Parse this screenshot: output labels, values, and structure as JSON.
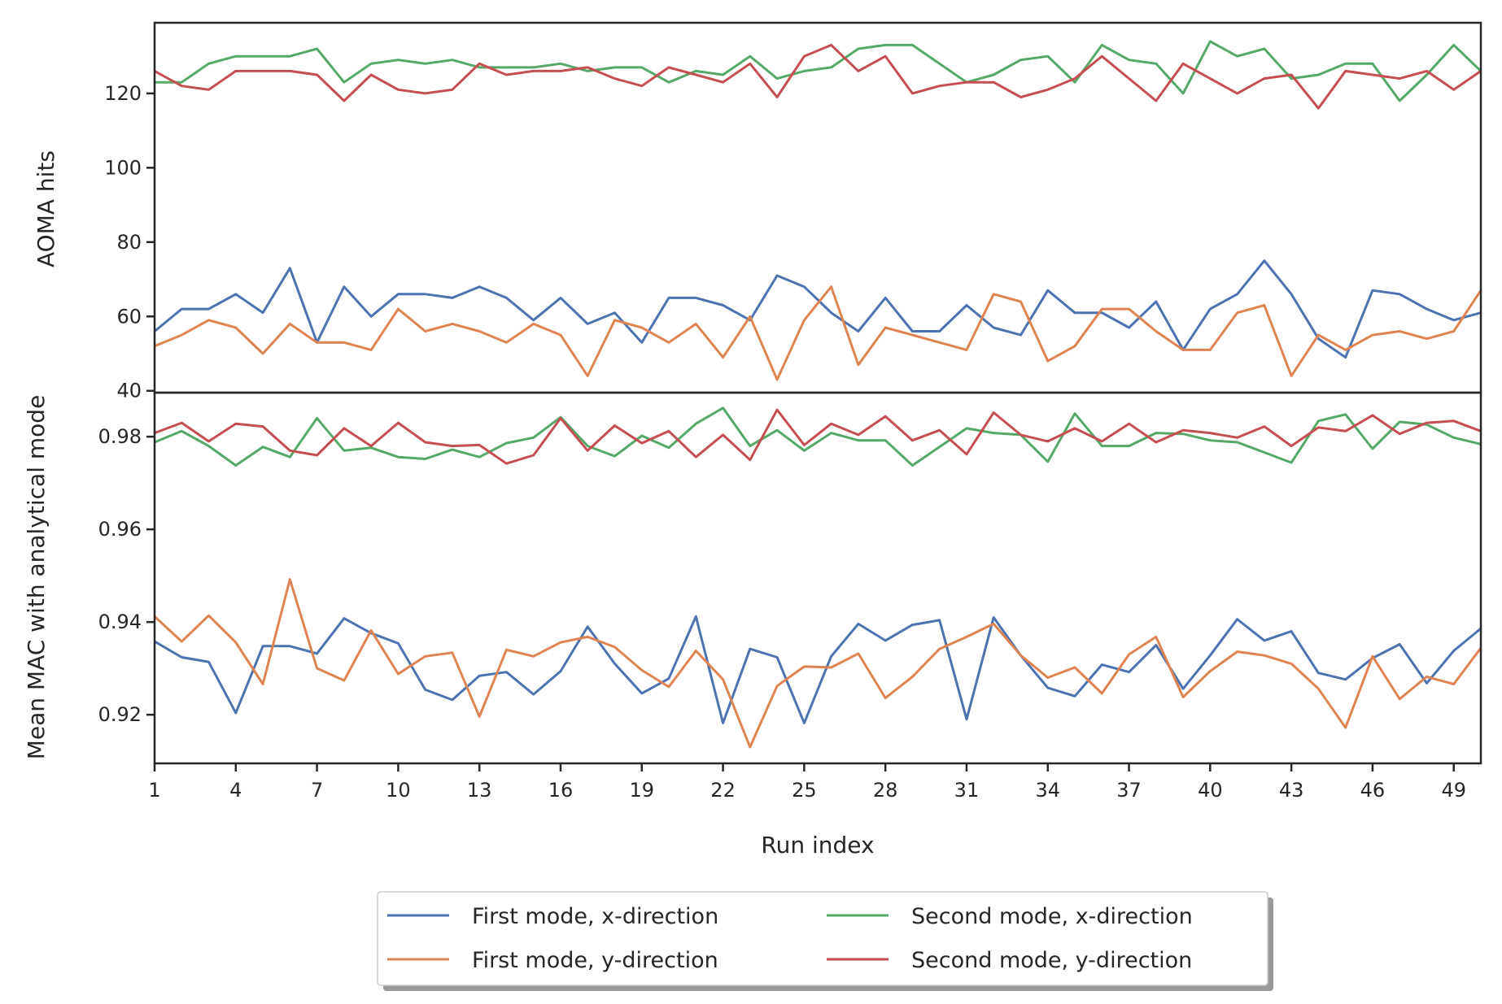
{
  "chart_data": [
    {
      "type": "line",
      "ylabel": "AOMA hits",
      "ylim": [
        39.5,
        139
      ],
      "yticks": [
        40,
        60,
        80,
        100,
        120
      ],
      "x": [
        1,
        2,
        3,
        4,
        5,
        6,
        7,
        8,
        9,
        10,
        11,
        12,
        13,
        14,
        15,
        16,
        17,
        18,
        19,
        20,
        21,
        22,
        23,
        24,
        25,
        26,
        27,
        28,
        29,
        30,
        31,
        32,
        33,
        34,
        35,
        36,
        37,
        38,
        39,
        40,
        41,
        42,
        43,
        44,
        45,
        46,
        47,
        48,
        49,
        50
      ],
      "series": [
        {
          "name": "First mode, x-direction",
          "color": "#4c72b0",
          "values": [
            56,
            62,
            62,
            66,
            61,
            73,
            53,
            68,
            60,
            66,
            66,
            65,
            68,
            65,
            59,
            65,
            58,
            61,
            53,
            65,
            65,
            63,
            59,
            71,
            68,
            61,
            56,
            65,
            56,
            56,
            63,
            57,
            55,
            67,
            61,
            61,
            57,
            64,
            51,
            62,
            66,
            75,
            66,
            54,
            49,
            67,
            66,
            62,
            59,
            61
          ]
        },
        {
          "name": "First mode, y-direction",
          "color": "#dd8452",
          "values": [
            52,
            55,
            59,
            57,
            50,
            58,
            53,
            53,
            51,
            62,
            56,
            58,
            56,
            53,
            58,
            55,
            44,
            59,
            57,
            53,
            58,
            49,
            60,
            43,
            59,
            68,
            47,
            57,
            55,
            53,
            51,
            66,
            64,
            48,
            52,
            62,
            62,
            56,
            51,
            51,
            61,
            63,
            44,
            55,
            51,
            55,
            56,
            54,
            56,
            67
          ]
        },
        {
          "name": "Second mode, x-direction",
          "color": "#55a868",
          "values": [
            123,
            123,
            128,
            130,
            130,
            130,
            132,
            123,
            128,
            129,
            128,
            129,
            127,
            127,
            127,
            128,
            126,
            127,
            127,
            123,
            126,
            125,
            130,
            124,
            126,
            127,
            132,
            133,
            133,
            128,
            123,
            125,
            129,
            130,
            123,
            133,
            129,
            128,
            120,
            134,
            130,
            132,
            124,
            125,
            128,
            128,
            118,
            125,
            133,
            126
          ]
        },
        {
          "name": "Second mode, y-direction",
          "color": "#c44e52",
          "values": [
            126,
            122,
            121,
            126,
            126,
            126,
            125,
            118,
            125,
            121,
            120,
            121,
            128,
            125,
            126,
            126,
            127,
            124,
            122,
            127,
            125,
            123,
            128,
            119,
            130,
            133,
            126,
            130,
            120,
            122,
            123,
            123,
            119,
            121,
            124,
            130,
            124,
            118,
            128,
            124,
            120,
            124,
            125,
            116,
            126,
            125,
            124,
            126,
            121,
            126
          ]
        }
      ]
    },
    {
      "type": "line",
      "xlabel": "Run index",
      "ylabel": "Mean MAC with analytical mode",
      "ylim": [
        0.9095,
        0.9895
      ],
      "yticks": [
        0.92,
        0.94,
        0.96,
        0.98
      ],
      "ytick_labels": [
        "0.92",
        "0.94",
        "0.96",
        "0.98"
      ],
      "xlim": [
        1,
        50
      ],
      "xticks": [
        1,
        4,
        7,
        10,
        13,
        16,
        19,
        22,
        25,
        28,
        31,
        34,
        37,
        40,
        43,
        46,
        49
      ],
      "x": [
        1,
        2,
        3,
        4,
        5,
        6,
        7,
        8,
        9,
        10,
        11,
        12,
        13,
        14,
        15,
        16,
        17,
        18,
        19,
        20,
        21,
        22,
        23,
        24,
        25,
        26,
        27,
        28,
        29,
        30,
        31,
        32,
        33,
        34,
        35,
        36,
        37,
        38,
        39,
        40,
        41,
        42,
        43,
        44,
        45,
        46,
        47,
        48,
        49,
        50
      ],
      "series": [
        {
          "name": "First mode, x-direction",
          "color": "#4c72b0",
          "values": [
            0.9358,
            0.9324,
            0.9314,
            0.9204,
            0.9348,
            0.9348,
            0.9332,
            0.9408,
            0.9376,
            0.9354,
            0.9254,
            0.9232,
            0.9284,
            0.9292,
            0.9244,
            0.9294,
            0.939,
            0.931,
            0.9246,
            0.9278,
            0.9412,
            0.9182,
            0.9342,
            0.9324,
            0.9182,
            0.9326,
            0.9396,
            0.936,
            0.9394,
            0.9404,
            0.919,
            0.941,
            0.9328,
            0.9258,
            0.924,
            0.9308,
            0.9292,
            0.935,
            0.9256,
            0.9328,
            0.9406,
            0.936,
            0.938,
            0.929,
            0.9276,
            0.9322,
            0.9352,
            0.9268,
            0.9338,
            0.9386
          ]
        },
        {
          "name": "First mode, y-direction",
          "color": "#dd8452",
          "values": [
            0.9412,
            0.9358,
            0.9414,
            0.9356,
            0.9266,
            0.9492,
            0.93,
            0.9274,
            0.9382,
            0.9288,
            0.9326,
            0.9334,
            0.9196,
            0.934,
            0.9326,
            0.9356,
            0.9368,
            0.9346,
            0.9296,
            0.926,
            0.9338,
            0.9276,
            0.913,
            0.9262,
            0.9304,
            0.9302,
            0.9332,
            0.9236,
            0.9282,
            0.9342,
            0.9368,
            0.9396,
            0.9328,
            0.928,
            0.9302,
            0.9246,
            0.933,
            0.9368,
            0.9238,
            0.9294,
            0.9336,
            0.9328,
            0.931,
            0.9256,
            0.9172,
            0.9326,
            0.9234,
            0.9282,
            0.9266,
            0.9344
          ]
        },
        {
          "name": "Second mode, x-direction",
          "color": "#55a868",
          "values": [
            0.9788,
            0.9812,
            0.978,
            0.9738,
            0.9778,
            0.9756,
            0.984,
            0.977,
            0.9776,
            0.9756,
            0.9752,
            0.9772,
            0.9756,
            0.9786,
            0.9798,
            0.9842,
            0.978,
            0.9758,
            0.9802,
            0.9776,
            0.9828,
            0.9862,
            0.978,
            0.9814,
            0.977,
            0.9808,
            0.9792,
            0.9792,
            0.9738,
            0.9778,
            0.9818,
            0.9808,
            0.9804,
            0.9746,
            0.985,
            0.978,
            0.978,
            0.9808,
            0.9806,
            0.9792,
            0.9788,
            0.9766,
            0.9744,
            0.9834,
            0.9848,
            0.9774,
            0.9832,
            0.9826,
            0.9798,
            0.9784
          ]
        },
        {
          "name": "Second mode, y-direction",
          "color": "#c44e52",
          "values": [
            0.9808,
            0.983,
            0.979,
            0.9828,
            0.9822,
            0.977,
            0.976,
            0.9818,
            0.978,
            0.983,
            0.9788,
            0.978,
            0.9782,
            0.9742,
            0.976,
            0.984,
            0.977,
            0.9824,
            0.9786,
            0.9812,
            0.9756,
            0.9804,
            0.975,
            0.9858,
            0.9782,
            0.9828,
            0.9804,
            0.9844,
            0.9792,
            0.9814,
            0.9762,
            0.9852,
            0.9804,
            0.979,
            0.9818,
            0.979,
            0.9828,
            0.9788,
            0.9814,
            0.9808,
            0.9798,
            0.9822,
            0.978,
            0.982,
            0.9812,
            0.9846,
            0.9806,
            0.983,
            0.9834,
            0.9812
          ]
        }
      ]
    }
  ],
  "legend": {
    "placement": "bottom-center, two columns, shadowed box",
    "items": [
      {
        "label": "First mode, x-direction",
        "color": "#4c72b0"
      },
      {
        "label": "First mode, y-direction",
        "color": "#dd8452"
      },
      {
        "label": "Second mode, x-direction",
        "color": "#55a868"
      },
      {
        "label": "Second mode, y-direction",
        "color": "#c44e52"
      }
    ]
  }
}
